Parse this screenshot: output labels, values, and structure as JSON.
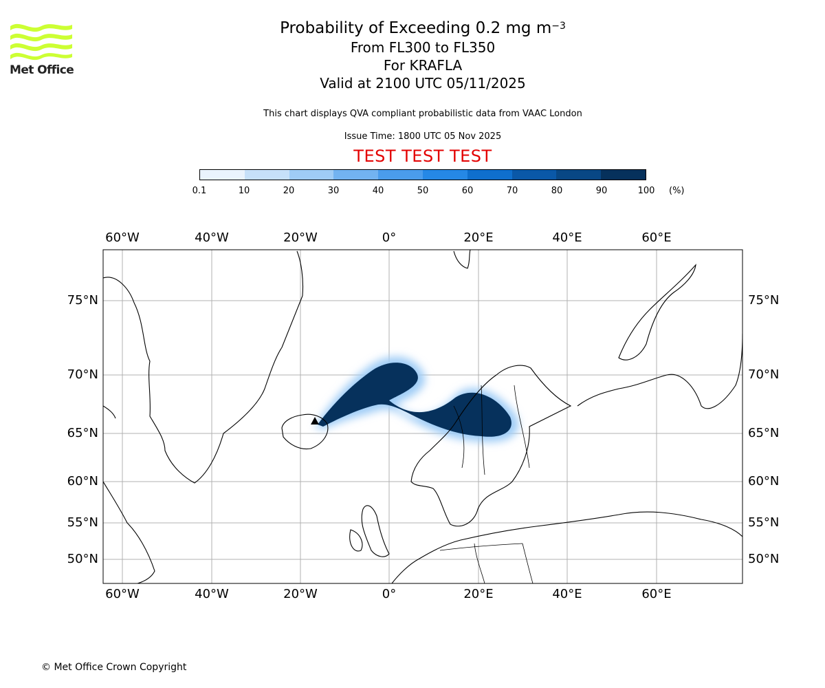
{
  "header": {
    "title_main": "Probability of Exceeding 0.2 mg m",
    "title_sup": "−3",
    "line2": "From FL300 to FL350",
    "line3": "For KRAFLA",
    "line4": "Valid at 2100 UTC 05/11/2025",
    "note": "This chart displays QVA compliant probabilistic data from VAAC London",
    "issue": "Issue Time: 1800 UTC 05 Nov 2025",
    "test_banner": "TEST TEST TEST",
    "test_color": "#e30000"
  },
  "logo": {
    "text": "Met Office",
    "color": "#ccff33"
  },
  "colorbar": {
    "ticks": [
      "0.1",
      "10",
      "20",
      "30",
      "40",
      "50",
      "60",
      "70",
      "80",
      "90",
      "100"
    ],
    "unit": "(%)",
    "colors": [
      "#eaf3fd",
      "#c6e0f9",
      "#9fccf6",
      "#72b3f1",
      "#4a9cec",
      "#2588e6",
      "#0f6fcd",
      "#0a58a8",
      "#084785",
      "#06315c"
    ]
  },
  "map": {
    "lon_labels": [
      "60°W",
      "40°W",
      "20°W",
      "0°",
      "20°E",
      "40°E",
      "60°E"
    ],
    "lat_labels": [
      "75°N",
      "70°N",
      "65°N",
      "60°N",
      "55°N",
      "50°N"
    ],
    "plume_color": "#06315c",
    "volcano_marker": "triangle"
  },
  "footer": {
    "copyright": "© Met Office Crown Copyright"
  }
}
